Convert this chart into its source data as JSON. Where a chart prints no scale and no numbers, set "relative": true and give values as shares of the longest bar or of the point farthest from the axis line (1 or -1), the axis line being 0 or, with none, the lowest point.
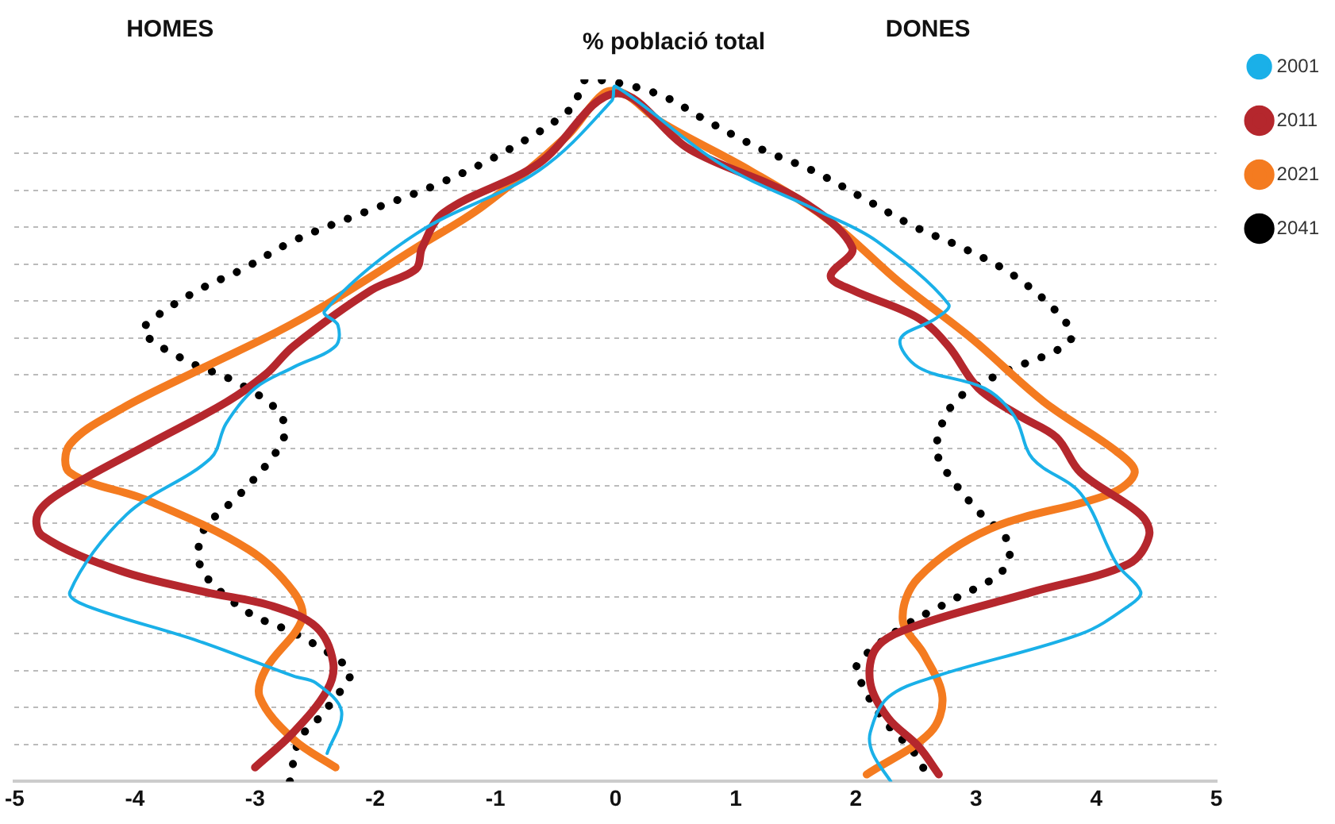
{
  "chart_data": {
    "type": "line",
    "title": "% població total",
    "annotations": [
      "HOMES",
      "DONES"
    ],
    "xlim": [
      -5,
      5
    ],
    "xticks": [
      -5,
      -4,
      -3,
      -2,
      -1,
      0,
      1,
      2,
      3,
      4,
      5
    ],
    "relative": true,
    "tick_labels": "x",
    "grid": "y",
    "legend": "right",
    "marker": "none",
    "series": [
      {
        "name": "2001",
        "color": "#1ab0e8",
        "line_style": "solid",
        "x": [
          -2.4,
          -2.28,
          -2.49,
          -2.68,
          -3.47,
          -4.4,
          -4.54,
          -4.07,
          -3.37,
          -3.24,
          -3.0,
          -2.68,
          -2.33,
          -2.31,
          -2.42,
          -1.66,
          -0.64,
          -0.03,
          0,
          0.87,
          1.72,
          2.17,
          2.77,
          2.67,
          2.37,
          2.52,
          3.07,
          3.32,
          3.47,
          3.87,
          4.17,
          4.37,
          4.27,
          3.87,
          2.67,
          2.27,
          2.12,
          2.14,
          2.29
        ],
        "values": [
          0.04,
          0.1,
          0.14,
          0.15,
          0.2,
          0.25,
          0.27,
          0.38,
          0.46,
          0.51,
          0.56,
          0.59,
          0.62,
          0.65,
          0.67,
          0.78,
          0.87,
          0.97,
          0.99,
          0.88,
          0.81,
          0.77,
          0.68,
          0.66,
          0.63,
          0.59,
          0.56,
          0.52,
          0.46,
          0.41,
          0.31,
          0.27,
          0.25,
          0.21,
          0.15,
          0.12,
          0.07,
          0.04,
          0
        ]
      },
      {
        "name": "2011",
        "color": "#b5272d",
        "line_style": "solid",
        "x": [
          -3.0,
          -2.68,
          -2.4,
          -2.35,
          -2.49,
          -2.86,
          -3.42,
          -4.12,
          -4.77,
          -4.81,
          -4.63,
          -3.89,
          -3.24,
          -2.91,
          -2.68,
          -2.03,
          -1.66,
          -1.61,
          -1.43,
          -0.64,
          0,
          0.62,
          1.52,
          1.97,
          1.79,
          1.97,
          2.52,
          2.77,
          3.02,
          3.37,
          3.67,
          3.87,
          4.37,
          4.44,
          4.27,
          3.47,
          2.47,
          2.17,
          2.12,
          2.27,
          2.52,
          2.69
        ],
        "values": [
          0.02,
          0.07,
          0.13,
          0.17,
          0.22,
          0.25,
          0.27,
          0.3,
          0.35,
          0.38,
          0.41,
          0.48,
          0.54,
          0.58,
          0.62,
          0.7,
          0.73,
          0.76,
          0.81,
          0.88,
          0.98,
          0.9,
          0.83,
          0.76,
          0.72,
          0.7,
          0.66,
          0.62,
          0.56,
          0.52,
          0.49,
          0.44,
          0.38,
          0.35,
          0.31,
          0.27,
          0.22,
          0.19,
          0.14,
          0.09,
          0.05,
          0.01
        ]
      },
      {
        "name": "2021",
        "color": "#f47b20",
        "line_style": "solid",
        "x": [
          -2.33,
          -2.68,
          -2.96,
          -2.91,
          -2.61,
          -2.68,
          -3.05,
          -3.89,
          -4.54,
          -4.54,
          -4.12,
          -3.42,
          -2.82,
          -2.4,
          -1.66,
          -1.1,
          -0.4,
          -0.1,
          0.07,
          0.37,
          1.12,
          1.77,
          2.37,
          2.97,
          3.57,
          4.17,
          4.32,
          4.12,
          3.12,
          2.52,
          2.39,
          2.57,
          2.72,
          2.62,
          2.09
        ],
        "values": [
          0.02,
          0.06,
          0.12,
          0.16,
          0.23,
          0.27,
          0.33,
          0.4,
          0.44,
          0.48,
          0.53,
          0.59,
          0.64,
          0.68,
          0.76,
          0.82,
          0.92,
          0.98,
          0.98,
          0.94,
          0.87,
          0.8,
          0.71,
          0.63,
          0.54,
          0.47,
          0.44,
          0.41,
          0.36,
          0.29,
          0.23,
          0.18,
          0.12,
          0.07,
          0.01
        ]
      },
      {
        "name": "2041",
        "color": "#000000",
        "line_style": "dotted",
        "x": [
          -2.71,
          -2.63,
          -2.47,
          -2.33,
          -2.21,
          -2.28,
          -2.66,
          -3.05,
          -3.4,
          -3.47,
          -3.42,
          -3.12,
          -2.82,
          -2.75,
          -2.82,
          -3.17,
          -3.58,
          -3.93,
          -3.84,
          -3.47,
          -3.1,
          -2.68,
          -2.1,
          -1.49,
          -0.89,
          -0.36,
          -0.24,
          0.34,
          0.77,
          1.22,
          1.64,
          2.07,
          2.49,
          2.89,
          3.32,
          3.72,
          3.79,
          3.62,
          3.19,
          2.82,
          2.67,
          2.72,
          2.99,
          3.27,
          3.22,
          2.82,
          2.39,
          2.02,
          2.02,
          2.22,
          2.49,
          2.59
        ],
        "values": [
          0,
          0.06,
          0.09,
          0.12,
          0.15,
          0.17,
          0.21,
          0.24,
          0.29,
          0.32,
          0.36,
          0.41,
          0.47,
          0.5,
          0.53,
          0.57,
          0.6,
          0.64,
          0.66,
          0.7,
          0.73,
          0.77,
          0.81,
          0.85,
          0.9,
          0.96,
          1,
          0.98,
          0.94,
          0.9,
          0.87,
          0.83,
          0.79,
          0.76,
          0.72,
          0.66,
          0.63,
          0.61,
          0.58,
          0.54,
          0.48,
          0.45,
          0.39,
          0.34,
          0.3,
          0.26,
          0.22,
          0.17,
          0.15,
          0.09,
          0.04,
          0.01
        ]
      }
    ]
  }
}
